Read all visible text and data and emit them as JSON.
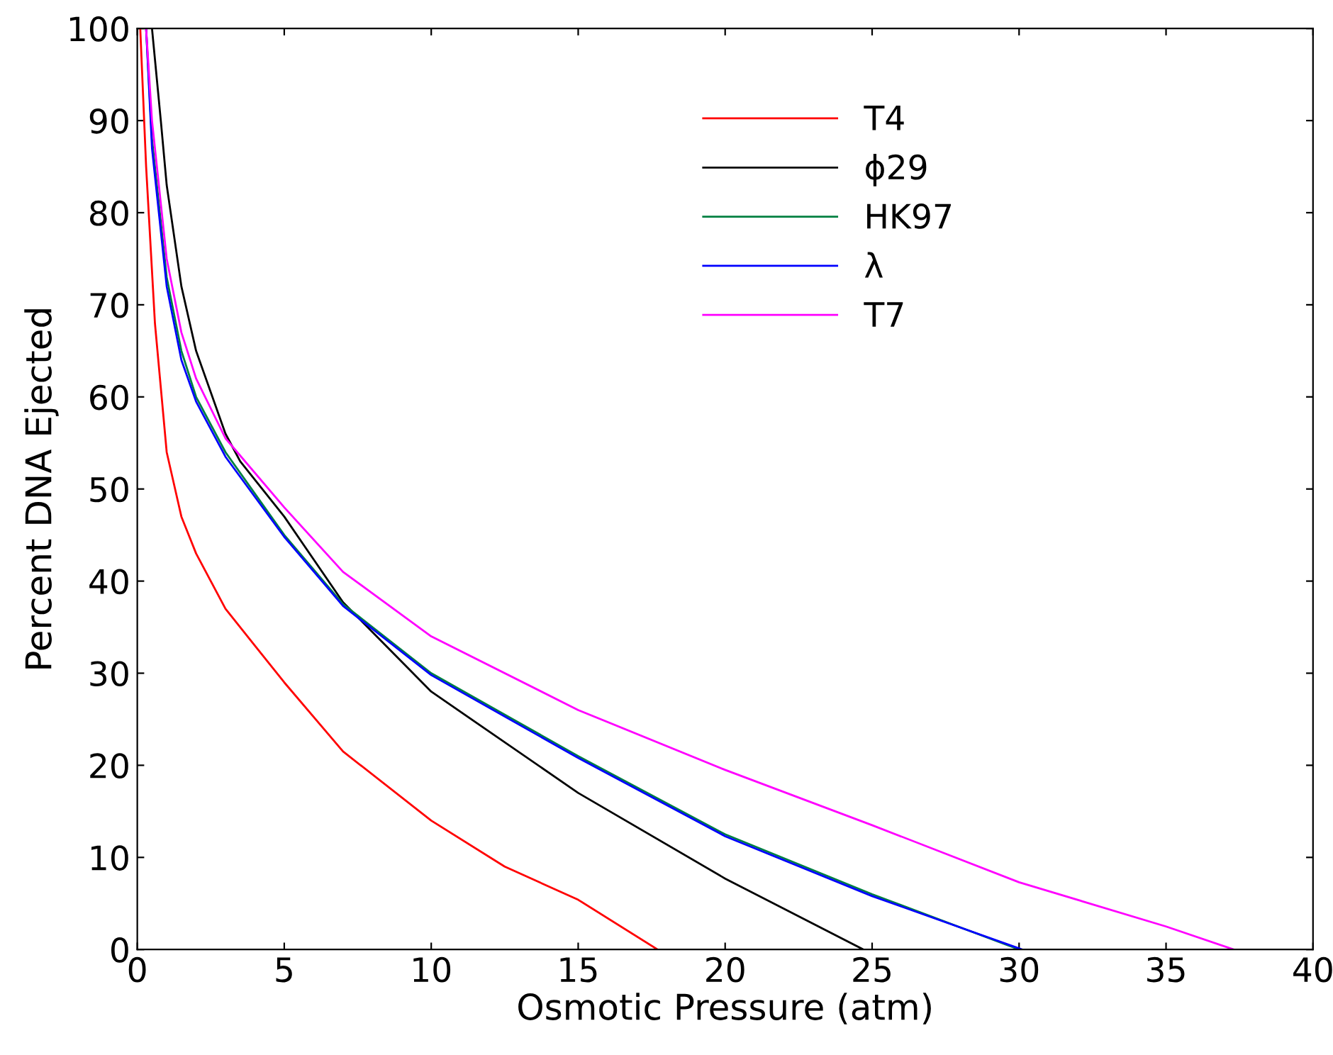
{
  "chart_data": {
    "type": "line",
    "xlabel": "Osmotic Pressure (atm)",
    "ylabel": "Percent DNA Ejected",
    "xlim": [
      0,
      40
    ],
    "xticks": [
      0,
      5,
      10,
      15,
      20,
      25,
      30,
      35,
      40
    ],
    "ylim": [
      0,
      100
    ],
    "yticks": [
      0,
      10,
      20,
      30,
      40,
      50,
      60,
      70,
      80,
      90,
      100
    ],
    "grid": false,
    "legend": "top right",
    "marker": "none",
    "line_style": "solid",
    "series": [
      {
        "name": "T4",
        "color": "#ff0000",
        "x": [
          0.1,
          0.3,
          0.6,
          1,
          1.5,
          2,
          3,
          4,
          5,
          7,
          10,
          12.5,
          15,
          17.7
        ],
        "values": [
          100,
          85,
          68,
          54,
          47,
          43,
          37,
          33,
          29,
          21.5,
          14,
          9,
          5.4,
          0
        ]
      },
      {
        "name": "ϕ29",
        "color": "#000000",
        "x": [
          0.5,
          0.8,
          1,
          1.5,
          2,
          3,
          3.5,
          5,
          7,
          10,
          15,
          20,
          24.7
        ],
        "values": [
          100,
          90,
          83,
          72,
          65,
          56,
          53,
          47,
          37.7,
          28,
          17,
          7.7,
          0
        ]
      },
      {
        "name": "HK97",
        "color": "#008040",
        "x": [
          0.3,
          0.5,
          1,
          1.5,
          2,
          3,
          5,
          7,
          10,
          15,
          20,
          25,
          30
        ],
        "values": [
          100,
          88,
          73,
          65,
          60,
          54,
          45,
          37.5,
          30,
          21,
          12.5,
          6,
          0
        ]
      },
      {
        "name": "λ",
        "color": "#0000ff",
        "x": [
          0.3,
          0.5,
          1,
          1.5,
          2,
          3,
          5,
          7,
          10,
          15,
          20,
          25,
          30.1
        ],
        "values": [
          100,
          87,
          72,
          64,
          59.5,
          53.5,
          44.8,
          37.3,
          29.8,
          20.8,
          12.3,
          5.8,
          0
        ]
      },
      {
        "name": "T7",
        "color": "#ff00ff",
        "x": [
          0.3,
          0.5,
          1,
          1.5,
          2,
          3,
          5,
          7,
          10,
          15,
          20,
          25,
          30,
          35,
          37.3
        ],
        "values": [
          100,
          90,
          75,
          67,
          62,
          55.5,
          48,
          41,
          34,
          26,
          19.5,
          13.5,
          7.3,
          2.5,
          0
        ]
      }
    ]
  }
}
